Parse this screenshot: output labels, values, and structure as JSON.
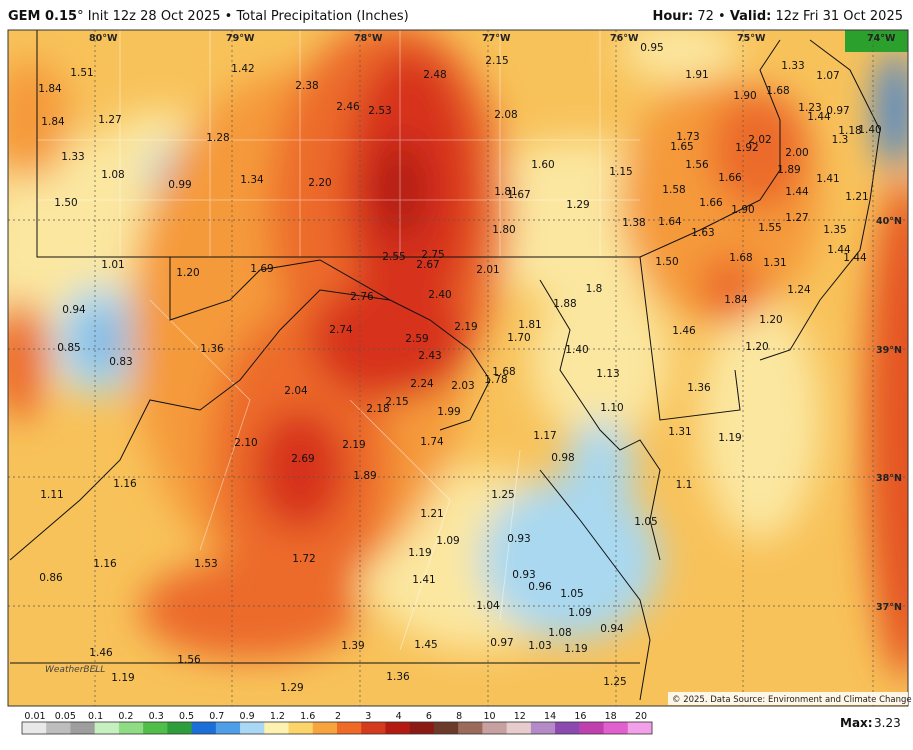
{
  "header": {
    "model": "GEM 0.15",
    "description": "° Init 12z 28 Oct 2025 • Total Precipitation (Inches)",
    "hour_label": "Hour:",
    "hour": "72",
    "separator": "•",
    "valid_label": "Valid:",
    "valid": "12z Fri 31 Oct 2025"
  },
  "longitudes": [
    "80°W",
    "79°W",
    "78°W",
    "77°W",
    "76°W",
    "75°W",
    "74°W"
  ],
  "latitudes": [
    "40°N",
    "39°N",
    "38°N",
    "37°N"
  ],
  "labels": [
    "1.51",
    "1.42",
    "2.38",
    "2.48",
    "2.15",
    "0.95",
    "1.91",
    "1.33",
    "1.07",
    "1.84",
    "1.27",
    "1.28",
    "2.46",
    "2.53",
    "2.08",
    "1.90",
    "1.68",
    "1.23",
    "0.97",
    "1.84",
    "1.44",
    "1.18",
    "1.40",
    "1.33",
    "1.73",
    "2.02",
    "1.3",
    "1.65",
    "1.92",
    "2.00",
    "1.08",
    "1.34",
    "1.60",
    "1.15",
    "1.56",
    "1.66",
    "1.89",
    "1.41",
    "0.99",
    "2.20",
    "1.81",
    "1.67",
    "1.58",
    "1.44",
    "1.50",
    "1.29",
    "1.66",
    "1.90",
    "1.21",
    "1.38",
    "1.64",
    "1.27",
    "1.55",
    "1.35",
    "1.80",
    "1.63",
    "1.44",
    "2.55",
    "2.75",
    "2.67",
    "1.50",
    "1.68",
    "1.31",
    "1.44",
    "1.01",
    "1.20",
    "1.69",
    "2.01",
    "2.76",
    "2.40",
    "1.88",
    "1.8",
    "1.24",
    "1.84",
    "0.94",
    "2.74",
    "2.19",
    "1.81",
    "1.70",
    "1.46",
    "1.20",
    "2.59",
    "1.36",
    "0.85",
    "0.83",
    "1.40",
    "1.20",
    "2.43",
    "1.78",
    "1.68",
    "2.24",
    "2.03",
    "1.13",
    "1.36",
    "2.04",
    "2.15",
    "2.18",
    "1.99",
    "1.10",
    "1.31",
    "1.19",
    "2.10",
    "2.19",
    "1.74",
    "1.17",
    "0.98",
    "2.69",
    "1.89",
    "1.16",
    "1.11",
    "1.25",
    "1.1",
    "1.21",
    "1.05",
    "1.09",
    "0.93",
    "1.19",
    "1.16",
    "1.53",
    "1.72",
    "0.86",
    "1.41",
    "0.93",
    "0.96",
    "1.05",
    "1.04",
    "1.09",
    "0.94",
    "1.08",
    "0.97",
    "1.03",
    "1.19",
    "1.39",
    "1.45",
    "1.46",
    "1.56",
    "1.19",
    "1.29",
    "1.36",
    "1.25"
  ],
  "colorbar": {
    "labels": [
      "0.01",
      "0.05",
      "0.1",
      "0.2",
      "0.3",
      "0.5",
      "0.7",
      "0.9",
      "1.2",
      "1.6",
      "2",
      "3",
      "4",
      "6",
      "8",
      "10",
      "12",
      "14",
      "16",
      "18",
      "20"
    ],
    "colors": [
      "#e8e8e8",
      "#bdbdbd",
      "#9e9e9e",
      "#c7f0c0",
      "#8fdc85",
      "#4fbf4a",
      "#2e9e3a",
      "#1c6fd8",
      "#4f9fe8",
      "#a8d8f4",
      "#fdf2b0",
      "#fbd46a",
      "#f7a43c",
      "#ee6a26",
      "#d43a1c",
      "#b51a12",
      "#8c1a14",
      "#6b3a2a",
      "#9c6a5a",
      "#c7a0a0",
      "#e6cccc",
      "#b48ac8",
      "#8a4ab0",
      "#c040b0",
      "#e060d0",
      "#f2a0e8"
    ]
  },
  "max_label": "Max:",
  "max": "3.23",
  "copyright": "© 2025. Data Source: Environment and Climate Change Canada.",
  "logo": "WeatherBELL"
}
